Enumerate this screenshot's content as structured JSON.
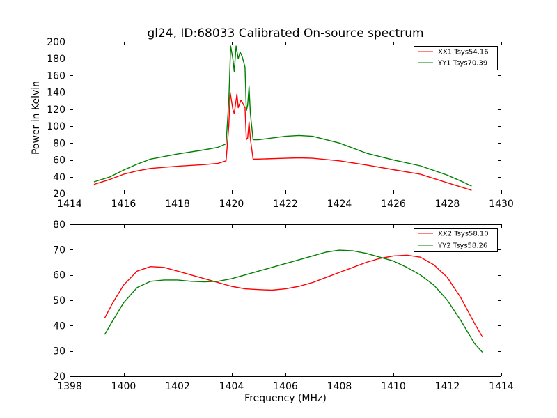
{
  "chart_data": [
    {
      "type": "line",
      "title": "gl24, ID:68033 Calibrated On-source spectrum",
      "xlabel": "",
      "ylabel": "Power in Kelvin",
      "xlim": [
        1414,
        1430
      ],
      "ylim": [
        20,
        200
      ],
      "xticks": [
        1414,
        1416,
        1418,
        1420,
        1422,
        1424,
        1426,
        1428,
        1430
      ],
      "yticks": [
        20,
        40,
        60,
        80,
        100,
        120,
        140,
        160,
        180,
        200
      ],
      "legend_position": "top-right",
      "series": [
        {
          "name": "XX1 Tsys54.16",
          "color": "#ff0000",
          "points": [
            [
              1414.9,
              31
            ],
            [
              1415.5,
              37
            ],
            [
              1416,
              43
            ],
            [
              1416.5,
              47
            ],
            [
              1417,
              50
            ],
            [
              1418,
              52.5
            ],
            [
              1419,
              54.5
            ],
            [
              1419.5,
              56
            ],
            [
              1419.8,
              59
            ],
            [
              1419.9,
              100
            ],
            [
              1419.95,
              140
            ],
            [
              1420.05,
              120
            ],
            [
              1420.1,
              115
            ],
            [
              1420.2,
              138
            ],
            [
              1420.25,
              122
            ],
            [
              1420.35,
              131
            ],
            [
              1420.42,
              127
            ],
            [
              1420.5,
              122
            ],
            [
              1420.55,
              84
            ],
            [
              1420.6,
              86
            ],
            [
              1420.65,
              105
            ],
            [
              1420.7,
              85
            ],
            [
              1420.8,
              61
            ],
            [
              1421,
              61
            ],
            [
              1422,
              62
            ],
            [
              1422.5,
              62.5
            ],
            [
              1423,
              62
            ],
            [
              1424,
              59
            ],
            [
              1425,
              54
            ],
            [
              1426,
              48.5
            ],
            [
              1427,
              43
            ],
            [
              1428,
              33
            ],
            [
              1428.5,
              28
            ],
            [
              1428.9,
              24
            ]
          ]
        },
        {
          "name": "YY1 Tsys70.39",
          "color": "#008000",
          "points": [
            [
              1414.9,
              34
            ],
            [
              1415.5,
              40
            ],
            [
              1416,
              48
            ],
            [
              1416.5,
              55
            ],
            [
              1417,
              61
            ],
            [
              1418,
              67
            ],
            [
              1419,
              72
            ],
            [
              1419.5,
              75
            ],
            [
              1419.8,
              79
            ],
            [
              1419.9,
              130
            ],
            [
              1419.97,
              195
            ],
            [
              1420.05,
              180
            ],
            [
              1420.1,
              165
            ],
            [
              1420.17,
              195
            ],
            [
              1420.25,
              180
            ],
            [
              1420.32,
              188
            ],
            [
              1420.4,
              182
            ],
            [
              1420.5,
              170
            ],
            [
              1420.55,
              118
            ],
            [
              1420.6,
              125
            ],
            [
              1420.65,
              147
            ],
            [
              1420.7,
              115
            ],
            [
              1420.8,
              84
            ],
            [
              1421,
              84
            ],
            [
              1422,
              88
            ],
            [
              1422.5,
              89
            ],
            [
              1423,
              88
            ],
            [
              1424,
              80
            ],
            [
              1425,
              68
            ],
            [
              1426,
              60
            ],
            [
              1427,
              53
            ],
            [
              1428,
              42
            ],
            [
              1428.5,
              35
            ],
            [
              1428.9,
              29
            ]
          ]
        }
      ]
    },
    {
      "type": "line",
      "title": "",
      "xlabel": "Frequency (MHz)",
      "ylabel": "",
      "xlim": [
        1398,
        1414
      ],
      "ylim": [
        20,
        80
      ],
      "xticks": [
        1398,
        1400,
        1402,
        1404,
        1406,
        1408,
        1410,
        1412,
        1414
      ],
      "yticks": [
        20,
        30,
        40,
        50,
        60,
        70,
        80
      ],
      "legend_position": "top-right",
      "series": [
        {
          "name": "XX2 Tsys58.10",
          "color": "#ff0000",
          "points": [
            [
              1399.3,
              43
            ],
            [
              1399.6,
              49
            ],
            [
              1400,
              56
            ],
            [
              1400.5,
              61.5
            ],
            [
              1401,
              63.3
            ],
            [
              1401.5,
              63
            ],
            [
              1402,
              61.5
            ],
            [
              1402.5,
              60
            ],
            [
              1403,
              58.5
            ],
            [
              1403.5,
              57
            ],
            [
              1404,
              55.5
            ],
            [
              1404.5,
              54.5
            ],
            [
              1405,
              54.2
            ],
            [
              1405.5,
              54
            ],
            [
              1406,
              54.5
            ],
            [
              1406.5,
              55.5
            ],
            [
              1407,
              57
            ],
            [
              1407.5,
              59
            ],
            [
              1408,
              61
            ],
            [
              1408.5,
              63
            ],
            [
              1409,
              65
            ],
            [
              1409.5,
              66.5
            ],
            [
              1410,
              67.5
            ],
            [
              1410.5,
              67.8
            ],
            [
              1411,
              67
            ],
            [
              1411.5,
              64
            ],
            [
              1412,
              59
            ],
            [
              1412.5,
              51
            ],
            [
              1413,
              41
            ],
            [
              1413.3,
              35.5
            ]
          ]
        },
        {
          "name": "YY2 Tsys58.26",
          "color": "#008000",
          "points": [
            [
              1399.3,
              36.5
            ],
            [
              1399.6,
              42
            ],
            [
              1400,
              49
            ],
            [
              1400.5,
              55
            ],
            [
              1401,
              57.5
            ],
            [
              1401.5,
              58
            ],
            [
              1402,
              58
            ],
            [
              1402.5,
              57.5
            ],
            [
              1403,
              57.3
            ],
            [
              1403.5,
              57.5
            ],
            [
              1404,
              58.5
            ],
            [
              1404.5,
              60
            ],
            [
              1405,
              61.5
            ],
            [
              1405.5,
              63
            ],
            [
              1406,
              64.5
            ],
            [
              1406.5,
              66
            ],
            [
              1407,
              67.5
            ],
            [
              1407.5,
              69
            ],
            [
              1408,
              69.8
            ],
            [
              1408.5,
              69.5
            ],
            [
              1409,
              68.5
            ],
            [
              1409.5,
              67
            ],
            [
              1410,
              65.5
            ],
            [
              1410.5,
              63
            ],
            [
              1411,
              60
            ],
            [
              1411.5,
              56
            ],
            [
              1412,
              50
            ],
            [
              1412.5,
              42
            ],
            [
              1413,
              33
            ],
            [
              1413.3,
              29.5
            ]
          ]
        }
      ]
    }
  ]
}
